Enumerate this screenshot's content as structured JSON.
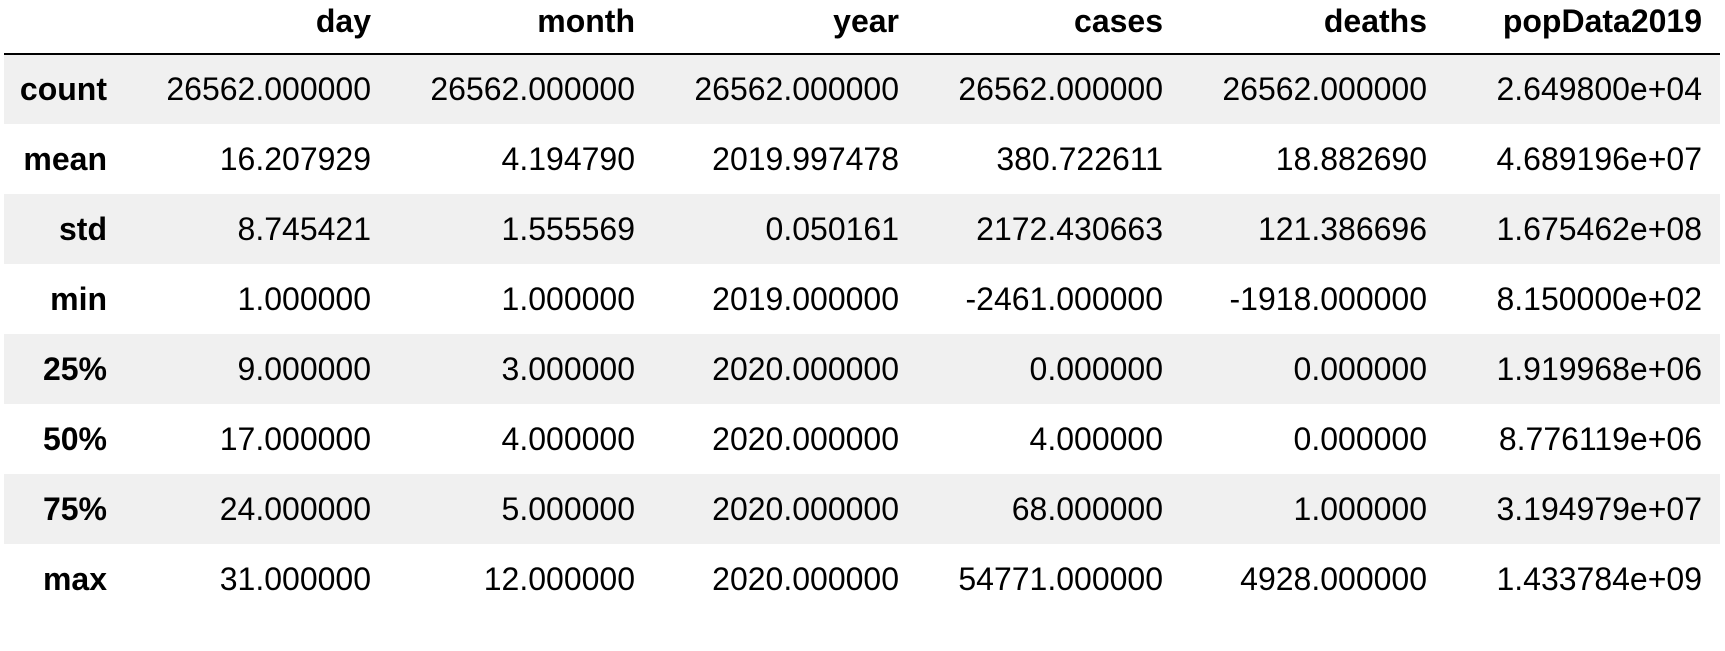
{
  "table": {
    "columns": [
      "",
      "day",
      "month",
      "year",
      "cases",
      "deaths",
      "popData2019"
    ],
    "rows": [
      {
        "index": "count",
        "values": [
          "26562.000000",
          "26562.000000",
          "26562.000000",
          "26562.000000",
          "26562.000000",
          "2.649800e+04"
        ]
      },
      {
        "index": "mean",
        "values": [
          "16.207929",
          "4.194790",
          "2019.997478",
          "380.722611",
          "18.882690",
          "4.689196e+07"
        ]
      },
      {
        "index": "std",
        "values": [
          "8.745421",
          "1.555569",
          "0.050161",
          "2172.430663",
          "121.386696",
          "1.675462e+08"
        ]
      },
      {
        "index": "min",
        "values": [
          "1.000000",
          "1.000000",
          "2019.000000",
          "-2461.000000",
          "-1918.000000",
          "8.150000e+02"
        ]
      },
      {
        "index": "25%",
        "values": [
          "9.000000",
          "3.000000",
          "2020.000000",
          "0.000000",
          "0.000000",
          "1.919968e+06"
        ]
      },
      {
        "index": "50%",
        "values": [
          "17.000000",
          "4.000000",
          "2020.000000",
          "4.000000",
          "0.000000",
          "8.776119e+06"
        ]
      },
      {
        "index": "75%",
        "values": [
          "24.000000",
          "5.000000",
          "2020.000000",
          "68.000000",
          "1.000000",
          "3.194979e+07"
        ]
      },
      {
        "index": "max",
        "values": [
          "31.000000",
          "12.000000",
          "2020.000000",
          "54771.000000",
          "4928.000000",
          "1.433784e+09"
        ]
      }
    ]
  }
}
